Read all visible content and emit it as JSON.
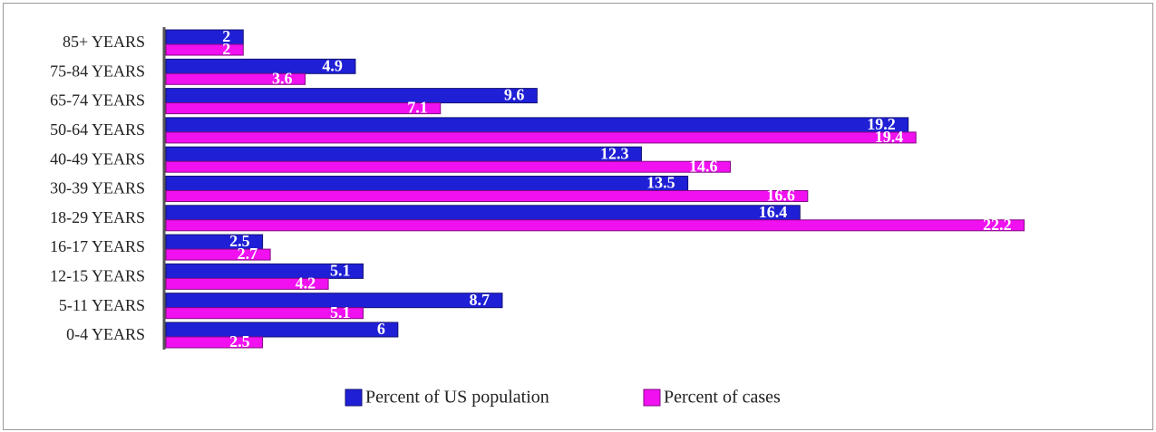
{
  "chart_data": {
    "type": "bar",
    "orientation": "horizontal",
    "categories": [
      "85+ YEARS",
      "75-84 YEARS",
      "65-74 YEARS",
      "50-64 YEARS",
      "40-49 YEARS",
      "30-39 YEARS",
      "18-29 YEARS",
      "16-17 YEARS",
      "12-15 YEARS",
      "5-11 YEARS",
      "0-4 YEARS"
    ],
    "series": [
      {
        "name": "Percent of US population",
        "color": "#1f1fd6",
        "values": [
          2,
          4.9,
          9.6,
          19.2,
          12.3,
          13.5,
          16.4,
          2.5,
          5.1,
          8.7,
          6
        ]
      },
      {
        "name": "Percent of cases",
        "color": "#f010f0",
        "values": [
          2,
          3.6,
          7.1,
          19.4,
          14.6,
          16.6,
          22.2,
          2.7,
          4.2,
          5.1,
          2.5
        ]
      }
    ],
    "xlim": [
      0,
      25
    ],
    "legend": "bottom"
  }
}
